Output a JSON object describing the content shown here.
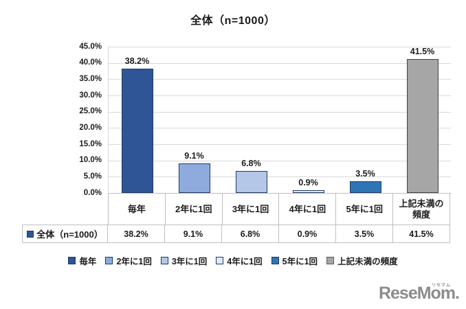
{
  "title": "全体（n=1000）",
  "chart_data": {
    "type": "bar",
    "title": "全体（n=1000）",
    "categories": [
      "毎年",
      "2年に1回",
      "3年に1回",
      "4年に1回",
      "5年に1回",
      "上記未満の頻度"
    ],
    "series": [
      {
        "name": "全体（n=1000）",
        "values": [
          38.2,
          9.1,
          6.8,
          0.9,
          3.5,
          41.5
        ]
      }
    ],
    "value_labels": [
      "38.2%",
      "9.1%",
      "6.8%",
      "0.9%",
      "3.5%",
      "41.5%"
    ],
    "ylabel": "",
    "xlabel": "",
    "ylim": [
      0,
      45
    ],
    "ytick_labels": [
      "45.0%",
      "40.0%",
      "35.0%",
      "30.0%",
      "25.0%",
      "20.0%",
      "15.0%",
      "10.0%",
      "5.0%",
      "0.0%"
    ],
    "grid": true,
    "legend_position": "bottom",
    "bar_colors": [
      "#2F5597",
      "#8FAADC",
      "#B4C7E7",
      "#DEEBF7",
      "#2E75B6",
      "#A6A6A6"
    ],
    "bar_border_colors": [
      "#1F3864",
      "#1F3864",
      "#1F3864",
      "#1F3864",
      "#1F3864",
      "#404040"
    ]
  },
  "table": {
    "row_header": "全体（n=1000）",
    "row_marker_color": "#2F5597",
    "row_marker_border": "#1F3864",
    "columns": [
      "毎年",
      "2年に1回",
      "3年に1回",
      "4年に1回",
      "5年に1回",
      "上記未満の頻度"
    ],
    "values": [
      "38.2%",
      "9.1%",
      "6.8%",
      "0.9%",
      "3.5%",
      "41.5%"
    ]
  },
  "legend": {
    "items": [
      {
        "label": "毎年",
        "color": "#2F5597",
        "border": "#1F3864"
      },
      {
        "label": "2年に1回",
        "color": "#8FAADC",
        "border": "#1F3864"
      },
      {
        "label": "3年に1回",
        "color": "#B4C7E7",
        "border": "#1F3864"
      },
      {
        "label": "4年に1回",
        "color": "#DEEBF7",
        "border": "#1F3864"
      },
      {
        "label": "5年に1回",
        "color": "#2E75B6",
        "border": "#1F3864"
      },
      {
        "label": "上記未満の頻度",
        "color": "#A6A6A6",
        "border": "#595959"
      }
    ]
  },
  "logo": {
    "text": "ReseMom.",
    "sub": "リセマム",
    "color": "#8C8C8C"
  }
}
